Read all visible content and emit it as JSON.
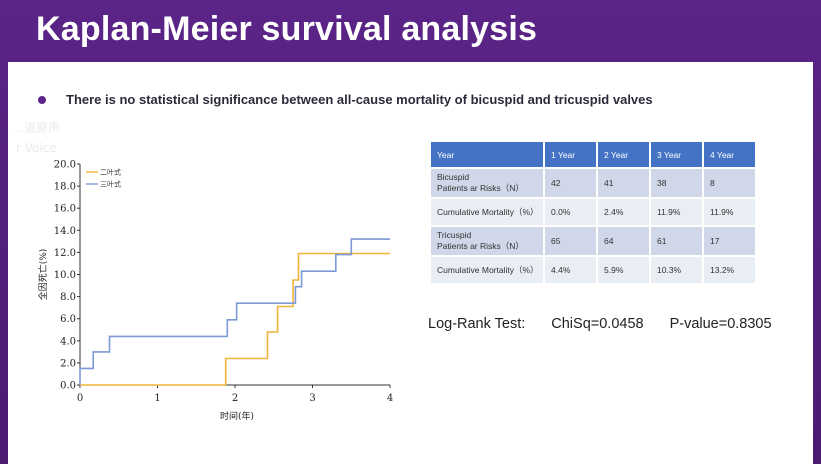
{
  "slide": {
    "title": "Kaplan-Meier survival analysis",
    "bullet": "There is no statistical significance between all-cause mortality of bicuspid and tricuspid valves"
  },
  "watermark": {
    "line1": "…道原声",
    "line2": "r Voice"
  },
  "chart_data": {
    "type": "line",
    "step": true,
    "xlabel": "时间(年)",
    "ylabel": "全因死亡(%)",
    "xlim": [
      0,
      4
    ],
    "ylim": [
      0,
      20
    ],
    "x_ticks": [
      "0",
      "1",
      "2",
      "3",
      "4"
    ],
    "y_ticks": [
      "0.0",
      "2.0",
      "4.0",
      "6.0",
      "8.0",
      "10.0",
      "12.0",
      "14.0",
      "16.0",
      "18.0",
      "20.0"
    ],
    "grid": false,
    "legend_position": "top-left",
    "series": [
      {
        "name": "二叶式",
        "color": "#f0b43c",
        "points": [
          [
            0,
            0
          ],
          [
            1.88,
            0
          ],
          [
            1.88,
            2.4
          ],
          [
            2.42,
            2.4
          ],
          [
            2.42,
            4.8
          ],
          [
            2.55,
            4.8
          ],
          [
            2.55,
            7.1
          ],
          [
            2.75,
            7.1
          ],
          [
            2.75,
            9.5
          ],
          [
            2.82,
            9.5
          ],
          [
            2.82,
            11.9
          ],
          [
            4,
            11.9
          ]
        ]
      },
      {
        "name": "三叶式",
        "color": "#7c9ad8",
        "points": [
          [
            0,
            0
          ],
          [
            0,
            1.5
          ],
          [
            0.17,
            1.5
          ],
          [
            0.17,
            3.0
          ],
          [
            0.38,
            3.0
          ],
          [
            0.38,
            4.4
          ],
          [
            1.9,
            4.4
          ],
          [
            1.9,
            5.9
          ],
          [
            2.02,
            5.9
          ],
          [
            2.02,
            7.4
          ],
          [
            2.78,
            7.4
          ],
          [
            2.78,
            8.9
          ],
          [
            2.86,
            8.9
          ],
          [
            2.86,
            10.3
          ],
          [
            3.3,
            10.3
          ],
          [
            3.3,
            11.8
          ],
          [
            3.5,
            11.8
          ],
          [
            3.5,
            13.2
          ],
          [
            4,
            13.2
          ]
        ]
      }
    ]
  },
  "risk_table": {
    "headers": [
      "Year",
      "1 Year",
      "2 Year",
      "3 Year",
      "4 Year"
    ],
    "rows": [
      {
        "label1": "Bicuspid",
        "label2": "Patients ar Risks（N）",
        "values": [
          "42",
          "41",
          "38",
          "8"
        ]
      },
      {
        "label1": "Cumulative  Mortality（%）",
        "label2": "",
        "values": [
          "0.0%",
          "2.4%",
          "11.9%",
          "11.9%"
        ]
      },
      {
        "label1": "Tricuspid",
        "label2": "Patients ar Risks（N）",
        "values": [
          "65",
          "64",
          "61",
          "17"
        ]
      },
      {
        "label1": "Cumulative  Mortality（%）",
        "label2": "",
        "values": [
          "4.4%",
          "5.9%",
          "10.3%",
          "13.2%"
        ]
      }
    ]
  },
  "stats": {
    "test": "Log-Rank Test:",
    "chisq": "ChiSq=0.0458",
    "pvalue": "P-value=0.8305"
  }
}
